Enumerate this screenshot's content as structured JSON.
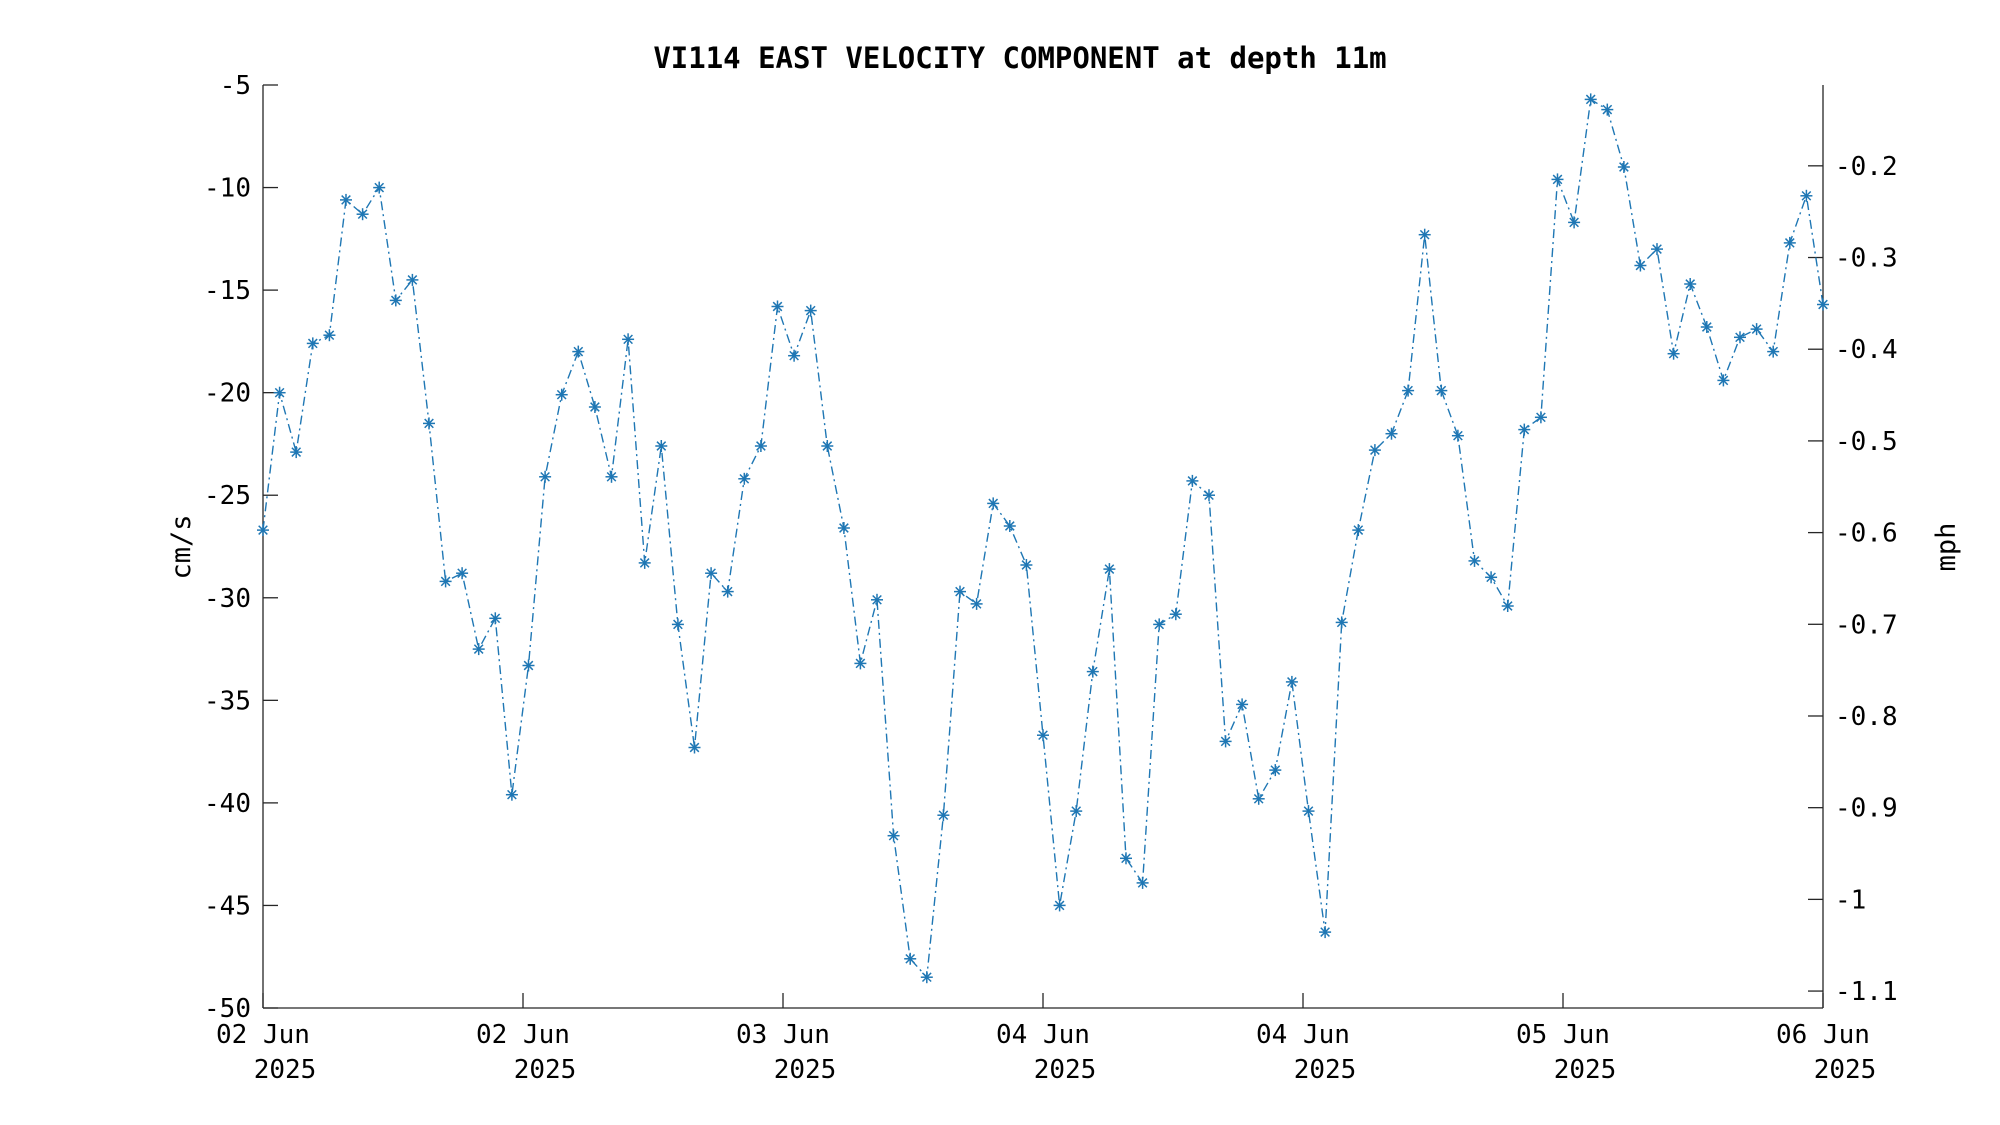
{
  "chart_data": {
    "type": "line",
    "title": "VI114 EAST VELOCITY COMPONENT at depth 11m",
    "ylabel": "cm/s",
    "y2label": "mph",
    "ylim": [
      -50,
      -5
    ],
    "yticks": [
      -5,
      -10,
      -15,
      -20,
      -25,
      -30,
      -35,
      -40,
      -45,
      -50
    ],
    "y2ticks": [
      -0.2,
      -0.3,
      -0.4,
      -0.5,
      -0.6,
      -0.7,
      -0.8,
      -0.9,
      -1,
      -1.1
    ],
    "y2tick_labels": [
      "-0.2",
      "-0.3",
      "-0.4",
      "-0.5",
      "-0.6",
      "-0.7",
      "-0.8",
      "-0.9",
      "-1",
      "-1.1"
    ],
    "xticks": [
      {
        "line1": "02 Jun",
        "line2": "2025"
      },
      {
        "line1": "02 Jun",
        "line2": "2025"
      },
      {
        "line1": "03 Jun",
        "line2": "2025"
      },
      {
        "line1": "04 Jun",
        "line2": "2025"
      },
      {
        "line1": "04 Jun",
        "line2": "2025"
      },
      {
        "line1": "05 Jun",
        "line2": "2025"
      },
      {
        "line1": "06 Jun",
        "line2": "2025"
      }
    ],
    "grid": false,
    "line_style": "dash-dot",
    "marker": "asterisk",
    "color": "#1f77b4",
    "values": [
      -26.7,
      -20.0,
      -22.9,
      -17.6,
      -17.2,
      -10.6,
      -11.3,
      -10.0,
      -15.5,
      -14.5,
      -21.5,
      -29.2,
      -28.8,
      -32.5,
      -31.0,
      -39.6,
      -33.3,
      -24.1,
      -20.1,
      -18.0,
      -20.7,
      -24.1,
      -17.4,
      -28.3,
      -22.6,
      -31.3,
      -37.3,
      -28.8,
      -29.7,
      -24.2,
      -22.6,
      -15.8,
      -18.2,
      -16.0,
      -22.6,
      -26.6,
      -33.2,
      -30.1,
      -41.6,
      -47.6,
      -48.5,
      -40.6,
      -29.7,
      -30.3,
      -25.4,
      -26.5,
      -28.4,
      -36.7,
      -45.0,
      -40.4,
      -33.6,
      -28.6,
      -42.7,
      -43.9,
      -31.3,
      -30.8,
      -24.3,
      -25.0,
      -37.0,
      -35.2,
      -39.8,
      -38.4,
      -34.1,
      -40.4,
      -46.3,
      -31.2,
      -26.7,
      -22.8,
      -22.0,
      -19.9,
      -12.3,
      -19.9,
      -22.1,
      -28.2,
      -29.0,
      -30.4,
      -21.8,
      -21.2,
      -9.6,
      -11.7,
      -5.7,
      -6.2,
      -9.0,
      -13.8,
      -13.0,
      -18.1,
      -14.7,
      -16.8,
      -19.4,
      -17.3,
      -16.9,
      -18.0,
      -12.7,
      -10.4,
      -15.7
    ]
  }
}
